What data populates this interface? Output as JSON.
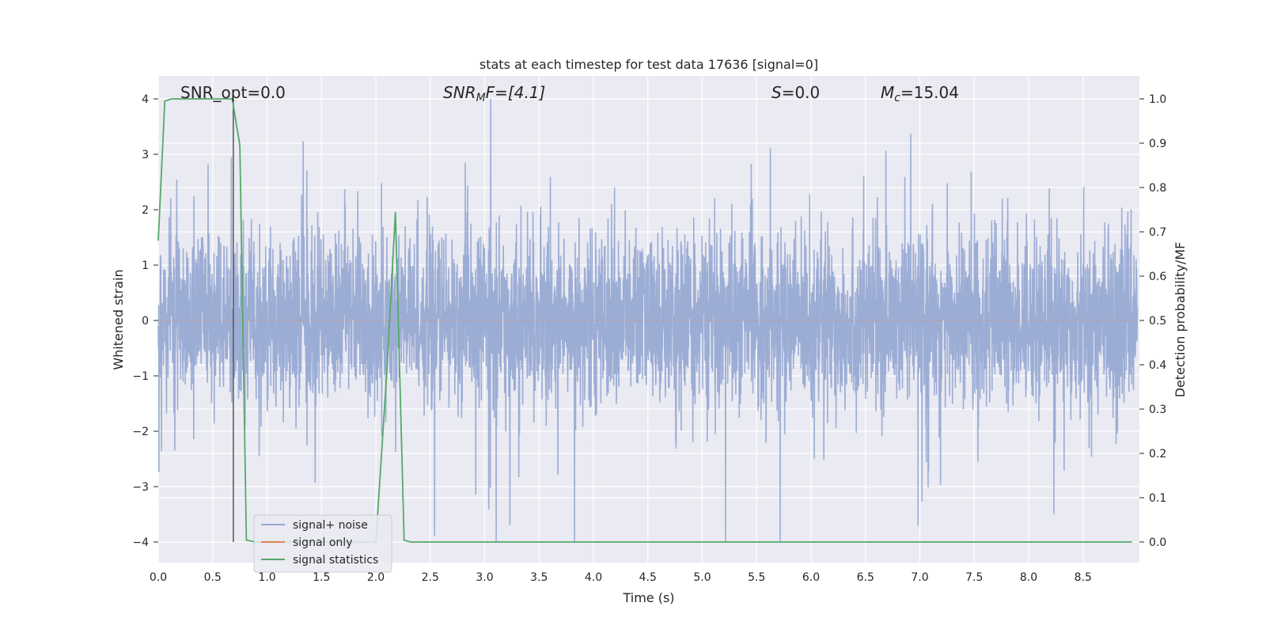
{
  "chart_data": {
    "type": "line",
    "title": "stats at each timestep for test data 17636 [signal=0]",
    "xlabel": "Time (s)",
    "ylabel": "Whitened strain",
    "y2label": "Detection probability/MF",
    "xlim": [
      0.0,
      9.0
    ],
    "ylim": [
      -4.38,
      4.38
    ],
    "y2lim": [
      -0.046,
      1.046
    ],
    "x_ticks": [
      "0.0",
      "0.5",
      "1.0",
      "1.5",
      "2.0",
      "2.5",
      "3.0",
      "3.5",
      "4.0",
      "4.5",
      "5.0",
      "5.5",
      "6.0",
      "6.5",
      "7.0",
      "7.5",
      "8.0",
      "8.5"
    ],
    "y_ticks": [
      "4",
      "3",
      "2",
      "1",
      "0",
      "−1",
      "−2",
      "−3",
      "−4"
    ],
    "y2_ticks": [
      "1.0",
      "0.9",
      "0.8",
      "0.7",
      "0.6",
      "0.5",
      "0.4",
      "0.3",
      "0.2",
      "0.1",
      "0.0"
    ],
    "grid": true,
    "legend_position": "lower-left",
    "annotations": {
      "snr_opt": "SNR_opt=0.0",
      "snr_mf_base": "SNR",
      "snr_mf_sub": "M",
      "snr_mf_rest": "F=[4.1]",
      "s_var": "S",
      "s_rest": "=0.0",
      "mc_var": "M",
      "mc_sub": "c",
      "mc_rest": "=15.04"
    },
    "vertical_line_x": 0.69,
    "series": [
      {
        "name": "signal+ noise",
        "color": "#93a6d2",
        "axis": "left",
        "note": "whitened noise trace, amplitude roughly ±1.5 with spikes up to ±4",
        "x_range": [
          0.0,
          9.0
        ],
        "amplitude": 1.6,
        "peak_min": -4.0,
        "peak_max": 4.0
      },
      {
        "name": "signal only",
        "color": "#dd8452",
        "axis": "left",
        "x": [
          0.0,
          9.0
        ],
        "y": [
          0.0,
          0.0
        ]
      },
      {
        "name": "signal statistics",
        "color": "#55a868",
        "axis": "right",
        "x": [
          0.0,
          0.06,
          0.12,
          0.2,
          0.3,
          0.4,
          0.5,
          0.6,
          0.68,
          0.75,
          0.81,
          0.9,
          1.0,
          1.2,
          1.5,
          1.8,
          2.0,
          2.1,
          2.18,
          2.26,
          2.32,
          2.5,
          3.0,
          4.0,
          5.0,
          6.0,
          7.0,
          8.0,
          8.95
        ],
        "y": [
          0.68,
          0.995,
          1.0,
          1.0,
          1.0,
          1.0,
          1.0,
          1.0,
          1.0,
          0.895,
          0.004,
          0.0,
          0.0,
          0.0,
          0.0,
          0.0,
          0.0,
          0.38,
          0.745,
          0.004,
          0.0,
          0.0,
          0.0,
          0.0,
          0.0,
          0.0,
          0.0,
          0.0,
          0.0
        ]
      }
    ]
  }
}
